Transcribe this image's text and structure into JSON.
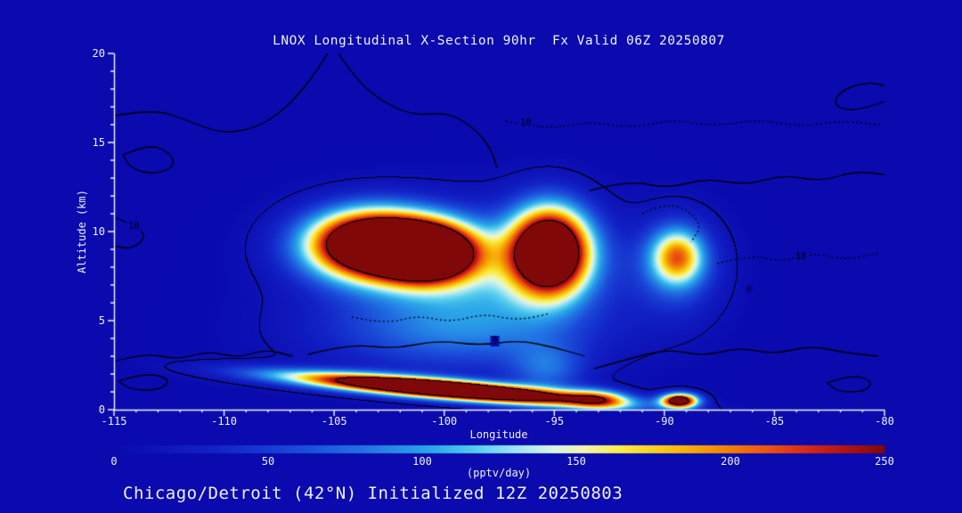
{
  "chart_data": {
    "type": "heatmap",
    "title": "LNOX Longitudinal X-Section 90hr  Fx Valid 06Z 20250807",
    "footer": "Chicago/Detroit (42°N) Initialized 12Z 20250803",
    "xlabel": "Longitude",
    "ylabel": "Altitude (km)",
    "x_range": [
      -115,
      -80
    ],
    "y_range": [
      0,
      20
    ],
    "x_major_ticks": [
      -115,
      -110,
      -105,
      -100,
      -95,
      -90,
      -85,
      -80
    ],
    "y_major_ticks": [
      0,
      5,
      10,
      15,
      20
    ],
    "x_minor_step": 1,
    "y_minor_step": 1,
    "background_color": "#0a0aae",
    "axis_color": "#f2f2f2",
    "text_color": "#ededf2",
    "contour_line_color": "#000000",
    "colorbar": {
      "min": 0,
      "max": 250,
      "ticks": [
        0,
        50,
        100,
        150,
        200,
        250
      ],
      "label": "(pptv/day)",
      "stops": [
        [
          0,
          "#0a0aae"
        ],
        [
          0.13,
          "#1222c6"
        ],
        [
          0.24,
          "#1a4ad8"
        ],
        [
          0.33,
          "#2277e4"
        ],
        [
          0.41,
          "#2aa6e8"
        ],
        [
          0.47,
          "#55cdee"
        ],
        [
          0.52,
          "#9ce4f2"
        ],
        [
          0.57,
          "#d8f4e4"
        ],
        [
          0.61,
          "#f4f4a8"
        ],
        [
          0.66,
          "#f8ec40"
        ],
        [
          0.72,
          "#f8c410"
        ],
        [
          0.78,
          "#f49000"
        ],
        [
          0.84,
          "#ee5c10"
        ],
        [
          0.9,
          "#d82814"
        ],
        [
          0.96,
          "#a81010"
        ],
        [
          1,
          "#800808"
        ]
      ]
    },
    "field_blobs": [
      {
        "a": 90,
        "x": -98.6,
        "y": 8.0,
        "sx": 4.2,
        "sy": 2.2,
        "slope": 0
      },
      {
        "a": 70,
        "x": -99.3,
        "y": 4.3,
        "sx": 4.4,
        "sy": 1.6,
        "slope": 0
      },
      {
        "a": 380,
        "x": -103.3,
        "y": 9.3,
        "sx": 2.0,
        "sy": 1.3,
        "slope": 0
      },
      {
        "a": 340,
        "x": -100.7,
        "y": 8.8,
        "sx": 1.5,
        "sy": 1.1,
        "slope": 0
      },
      {
        "a": 360,
        "x": -95.2,
        "y": 8.9,
        "sx": 1.25,
        "sy": 1.7,
        "slope": 0
      },
      {
        "a": 150,
        "x": -89.4,
        "y": 8.6,
        "sx": 0.85,
        "sy": 1.1,
        "slope": 0
      },
      {
        "a": 60,
        "x": -89.4,
        "y": 8.0,
        "sx": 1.35,
        "sy": 1.9,
        "slope": 0
      },
      {
        "a": 430,
        "x": -100.0,
        "y": 1.15,
        "sx": 4.6,
        "sy": 0.37,
        "slope": -0.1
      },
      {
        "a": 140,
        "x": -93.0,
        "y": 0.6,
        "sx": 1.0,
        "sy": 0.4,
        "slope": -0.05
      },
      {
        "a": 300,
        "x": -89.3,
        "y": 0.5,
        "sx": 0.6,
        "sy": 0.3,
        "slope": 0
      },
      {
        "a": 60,
        "x": -95.3,
        "y": 2.2,
        "sx": 1.2,
        "sy": 1.0,
        "slope": 0
      }
    ],
    "contour_levels": [
      10,
      250
    ],
    "contour_paths": [
      {
        "style": "solid",
        "points": [
          [
            -115,
            16.5
          ],
          [
            -113.2,
            16.9
          ],
          [
            -111.6,
            16.2
          ],
          [
            -110.1,
            15.5
          ],
          [
            -108.6,
            15.8
          ],
          [
            -107.4,
            16.7
          ],
          [
            -106.4,
            18.0
          ],
          [
            -105.7,
            19.2
          ],
          [
            -105.3,
            20
          ]
        ]
      },
      {
        "style": "solid",
        "points": [
          [
            -114.6,
            14.3
          ],
          [
            -113.5,
            14.9
          ],
          [
            -112.5,
            14.5
          ],
          [
            -112.2,
            13.7
          ],
          [
            -113.1,
            13.2
          ],
          [
            -114.2,
            13.5
          ],
          [
            -114.6,
            14.3
          ]
        ]
      },
      {
        "style": "solid",
        "points": [
          [
            -104.8,
            20
          ],
          [
            -104.0,
            18.5
          ],
          [
            -102.7,
            17.2
          ],
          [
            -101.3,
            16.5
          ],
          [
            -99.9,
            16.7
          ],
          [
            -98.7,
            15.9
          ],
          [
            -97.9,
            14.7
          ],
          [
            -97.6,
            13.6
          ]
        ]
      },
      {
        "style": "solid",
        "points": [
          [
            -93.4,
            12.3
          ],
          [
            -91.6,
            12.9
          ],
          [
            -89.9,
            12.4
          ],
          [
            -88.1,
            13.0
          ],
          [
            -86.3,
            12.6
          ],
          [
            -84.6,
            13.2
          ],
          [
            -82.9,
            12.8
          ],
          [
            -81.3,
            13.4
          ],
          [
            -80,
            13.2
          ]
        ]
      },
      {
        "style": "solid",
        "points": [
          [
            -80,
            17.3
          ],
          [
            -81.3,
            16.7
          ],
          [
            -82.4,
            17.1
          ],
          [
            -81.9,
            18.0
          ],
          [
            -80.7,
            18.4
          ],
          [
            -80,
            18.2
          ]
        ]
      },
      {
        "style": "solid",
        "points": [
          [
            -115,
            2.7
          ],
          [
            -113.6,
            3.2
          ],
          [
            -112.1,
            2.8
          ],
          [
            -110.7,
            3.3
          ],
          [
            -109.4,
            2.9
          ],
          [
            -108.1,
            3.4
          ],
          [
            -106.9,
            3.0
          ]
        ]
      },
      {
        "style": "solid",
        "points": [
          [
            -93.2,
            2.3
          ],
          [
            -91.5,
            2.9
          ],
          [
            -89.8,
            3.4
          ],
          [
            -88.2,
            3.0
          ],
          [
            -86.6,
            3.5
          ],
          [
            -85.0,
            3.1
          ],
          [
            -83.4,
            3.6
          ],
          [
            -81.8,
            3.2
          ],
          [
            -80.3,
            3.0
          ]
        ]
      },
      {
        "style": "solid",
        "points": [
          [
            -106.2,
            3.1
          ],
          [
            -104.3,
            3.7
          ],
          [
            -102.3,
            3.4
          ],
          [
            -100.3,
            3.9
          ],
          [
            -98.4,
            3.6
          ],
          [
            -96.6,
            3.9
          ],
          [
            -95.0,
            3.5
          ],
          [
            -93.6,
            3.0
          ]
        ]
      },
      {
        "style": "solid",
        "points": [
          [
            -115,
            10.8
          ],
          [
            -114.1,
            10.4
          ],
          [
            -113.5,
            9.7
          ],
          [
            -114.2,
            9.0
          ],
          [
            -115,
            9.2
          ]
        ]
      },
      {
        "style": "solid",
        "points": [
          [
            -114.8,
            1.6
          ],
          [
            -113.6,
            2.1
          ],
          [
            -112.4,
            1.7
          ],
          [
            -112.9,
            1.1
          ],
          [
            -114.2,
            1.1
          ],
          [
            -114.8,
            1.6
          ]
        ]
      },
      {
        "style": "solid",
        "points": [
          [
            -82.6,
            1.5
          ],
          [
            -81.5,
            2.0
          ],
          [
            -80.5,
            1.6
          ],
          [
            -80.9,
            1.0
          ],
          [
            -82.1,
            1.0
          ],
          [
            -82.6,
            1.5
          ]
        ]
      },
      {
        "style": "dotted",
        "points": [
          [
            -97.2,
            16.2
          ],
          [
            -95.3,
            15.7
          ],
          [
            -93.4,
            16.2
          ],
          [
            -91.5,
            15.8
          ],
          [
            -89.6,
            16.3
          ],
          [
            -87.7,
            15.9
          ],
          [
            -85.8,
            16.3
          ],
          [
            -83.9,
            15.9
          ],
          [
            -82.0,
            16.2
          ],
          [
            -80.2,
            16.0
          ]
        ]
      },
      {
        "style": "dotted",
        "points": [
          [
            -104.2,
            5.2
          ],
          [
            -102.7,
            4.8
          ],
          [
            -101.2,
            5.3
          ],
          [
            -99.7,
            4.9
          ],
          [
            -98.2,
            5.4
          ],
          [
            -96.7,
            5.0
          ],
          [
            -95.2,
            5.4
          ]
        ]
      },
      {
        "style": "dotted",
        "points": [
          [
            -87.6,
            8.2
          ],
          [
            -86.1,
            8.7
          ],
          [
            -84.7,
            8.3
          ],
          [
            -83.2,
            8.8
          ],
          [
            -81.8,
            8.4
          ],
          [
            -80.3,
            8.8
          ]
        ]
      },
      {
        "style": "dotted",
        "points": [
          [
            -91.0,
            11.0
          ],
          [
            -90.0,
            11.6
          ],
          [
            -88.9,
            11.2
          ],
          [
            -88.3,
            10.3
          ],
          [
            -88.8,
            9.4
          ]
        ]
      }
    ],
    "contour_labels": [
      {
        "text": "10",
        "lon": -96.3,
        "alt": 16.1
      },
      {
        "text": "10",
        "lon": -83.8,
        "alt": 8.6
      },
      {
        "text": "10",
        "lon": -114.1,
        "alt": 10.3
      },
      {
        "text": "0",
        "lon": -97.7,
        "alt": 3.85
      }
    ],
    "markers": [
      {
        "lon": -86.15,
        "alt": 6.8,
        "color": "#06067e",
        "size": 7
      }
    ]
  }
}
